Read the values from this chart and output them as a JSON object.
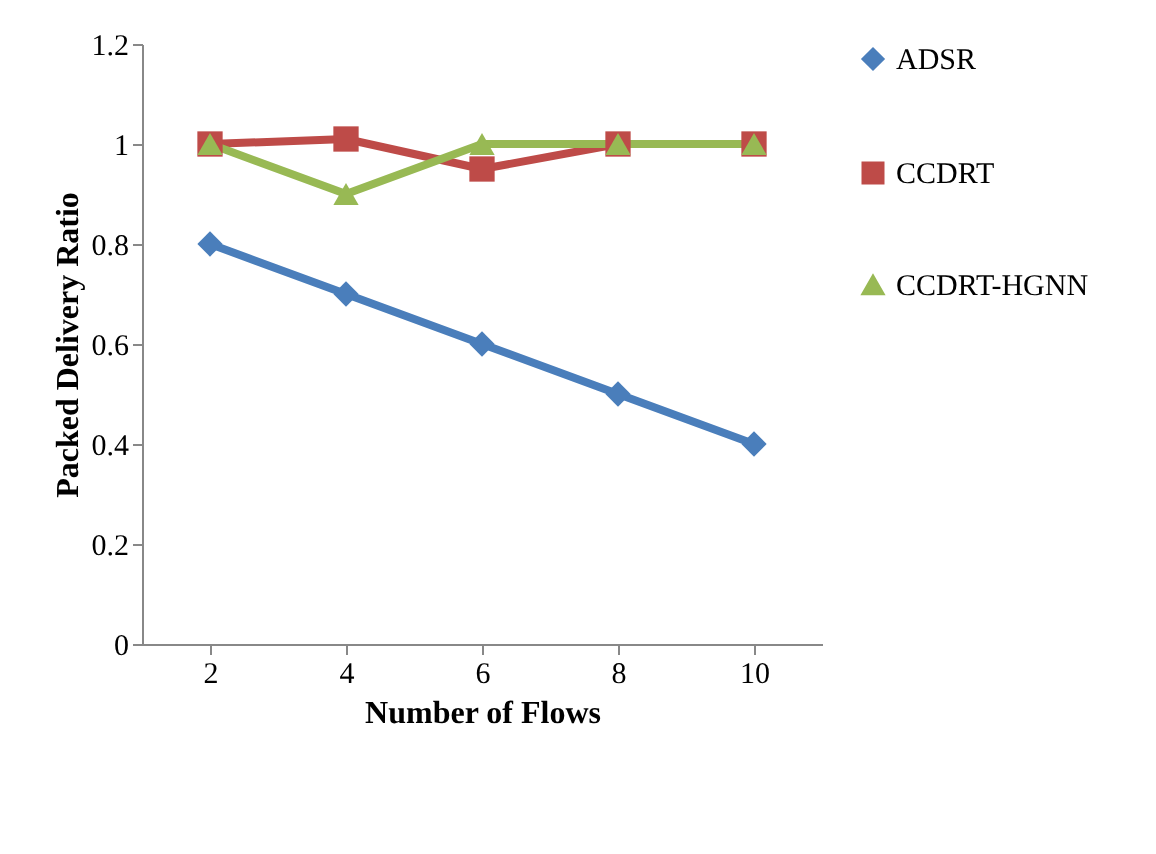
{
  "chart_data": {
    "type": "line",
    "xlabel": "Number of Flows",
    "ylabel": "Packed  Delivery Ratio",
    "categories": [
      "2",
      "4",
      "6",
      "8",
      "10"
    ],
    "ylim": [
      0,
      1.2
    ],
    "yticks": [
      0,
      0.2,
      0.4,
      0.6,
      0.8,
      1,
      1.2
    ],
    "grid": false,
    "legend": "right",
    "series": [
      {
        "name": "ADSR",
        "color": "#4a7ebb",
        "marker": "diamond",
        "values": [
          0.8,
          0.7,
          0.6,
          0.5,
          0.4
        ]
      },
      {
        "name": "CCDRT",
        "color": "#be4b48",
        "marker": "square",
        "values": [
          1,
          1.01,
          0.95,
          1,
          1
        ]
      },
      {
        "name": "CCDRT-HGNN",
        "color": "#98b954",
        "marker": "triangle",
        "values": [
          1,
          0.9,
          1,
          1,
          1
        ]
      }
    ]
  }
}
